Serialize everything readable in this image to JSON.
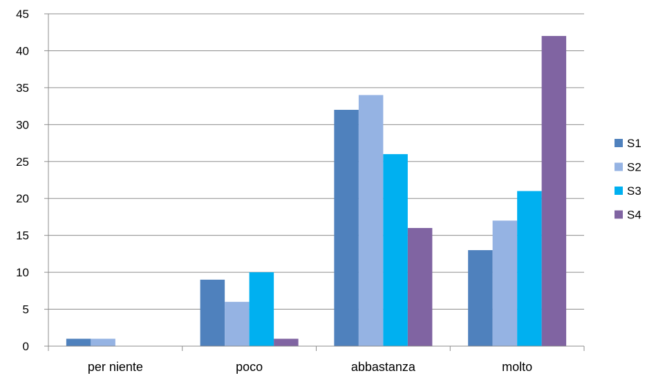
{
  "chart_data": {
    "type": "bar",
    "title": "",
    "xlabel": "",
    "ylabel": "",
    "categories": [
      "per niente",
      "poco",
      "abbastanza",
      "molto"
    ],
    "series": [
      {
        "name": "S1",
        "color": "#4F81BD",
        "values": [
          1,
          9,
          32,
          13
        ]
      },
      {
        "name": "S2",
        "color": "#95B3E3",
        "values": [
          1,
          6,
          34,
          17
        ]
      },
      {
        "name": "S3",
        "color": "#00B0F0",
        "values": [
          0,
          10,
          26,
          21
        ]
      },
      {
        "name": "S4",
        "color": "#8064A2",
        "values": [
          0,
          1,
          16,
          42
        ]
      }
    ],
    "ylim": [
      0,
      45
    ],
    "yticks": [
      0,
      5,
      10,
      15,
      20,
      25,
      30,
      35,
      40,
      45
    ],
    "grid": true,
    "legend_position": "right"
  }
}
